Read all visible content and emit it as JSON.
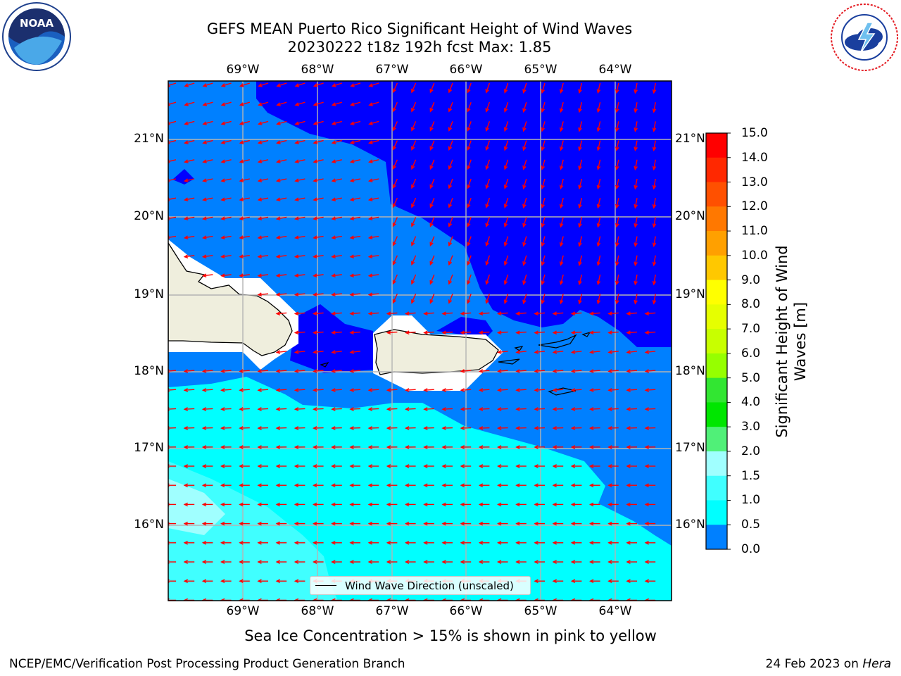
{
  "title": {
    "line1": "GEFS MEAN Puerto Rico Significant Height of Wind Waves",
    "line2": "20230222 t18z 192h fcst   Max: 1.85"
  },
  "logos": {
    "left": "NOAA",
    "right": "NATIONAL WEATHER SERVICE"
  },
  "map": {
    "lon_labels": [
      "69°W",
      "68°W",
      "67°W",
      "66°W",
      "65°W",
      "64°W"
    ],
    "lat_labels": [
      "21°N",
      "20°N",
      "19°N",
      "18°N",
      "17°N",
      "16°N"
    ],
    "legend_label": "Wind Wave Direction (unscaled)",
    "colors": {
      "0.0-0.5": "#0000ff",
      "0.5-1.0": "#0080ff",
      "1.0-1.5": "#00ffff",
      "1.5-2.0": "#40ffff",
      "2.0-3.0": "#a0ffff",
      "land": "#efeedd",
      "arrows": "#ff0000"
    }
  },
  "colorbar": {
    "title": "Significant Height of Wind Waves [m]",
    "labels": [
      "15.0",
      "14.0",
      "13.0",
      "12.0",
      "11.0",
      "10.0",
      "9.0",
      "8.0",
      "7.0",
      "6.0",
      "5.0",
      "4.0",
      "3.0",
      "2.0",
      "1.5",
      "1.0",
      "0.5",
      "0.0"
    ],
    "colors": [
      "#ff0000",
      "#ff2800",
      "#ff5000",
      "#ff7800",
      "#ffa000",
      "#ffc800",
      "#ffff00",
      "#e6ff00",
      "#c8ff00",
      "#96ff00",
      "#32e632",
      "#00e600",
      "#50f078",
      "#a0ffff",
      "#40ffff",
      "#00ffff",
      "#0080ff",
      "#0000ff"
    ]
  },
  "note": "Sea Ice Concentration > 15% is shown in pink to yellow",
  "footer": {
    "left": "NCEP/EMC/Verification Post Processing Product Generation Branch",
    "date": "24 Feb 2023 on ",
    "host": "Hera"
  }
}
